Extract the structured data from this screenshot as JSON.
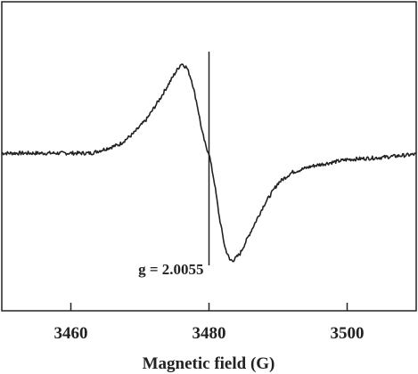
{
  "chart_data": {
    "type": "line",
    "title": "",
    "xlabel": "Magnetic field (G)",
    "ylabel": "",
    "xlim": [
      3450,
      3510
    ],
    "ylim": [
      -1.0,
      1.0
    ],
    "xticks": [
      3460,
      3480,
      3500
    ],
    "grid": false,
    "legend": "none",
    "annotation": {
      "text": "g = 2.0055",
      "x": 3480
    },
    "marker_line": {
      "x": 3480,
      "y_top": 0.95,
      "y_bottom": -1.05
    },
    "series": [
      {
        "color": "#222222",
        "x": [
          3450,
          3455,
          3460,
          3463,
          3465,
          3467,
          3469,
          3471,
          3473,
          3475,
          3476,
          3476.8,
          3477.5,
          3478.3,
          3479,
          3479.6,
          3480,
          3480.8,
          3481.5,
          3482.3,
          3483,
          3483.6,
          3484.5,
          3486,
          3488,
          3490,
          3492,
          3495,
          3500,
          3505,
          3510
        ],
        "y": [
          0.0,
          0.0,
          0.0,
          0.0,
          0.04,
          0.08,
          0.18,
          0.32,
          0.52,
          0.74,
          0.84,
          0.8,
          0.68,
          0.45,
          0.2,
          0.05,
          0.0,
          -0.28,
          -0.6,
          -0.88,
          -1.0,
          -1.0,
          -0.94,
          -0.74,
          -0.48,
          -0.28,
          -0.18,
          -0.12,
          -0.06,
          -0.04,
          -0.01
        ]
      }
    ]
  }
}
